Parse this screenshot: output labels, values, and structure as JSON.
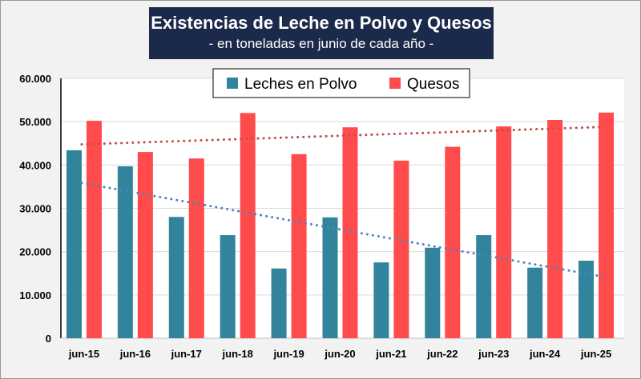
{
  "chart_data": {
    "type": "bar",
    "title": "Existencias de Leche en Polvo y Quesos",
    "subtitle": "- en toneladas en junio de cada año -",
    "categories": [
      "jun-15",
      "jun-16",
      "jun-17",
      "jun-18",
      "jun-19",
      "jun-20",
      "jun-21",
      "jun-22",
      "jun-23",
      "jun-24",
      "jun-25"
    ],
    "series": [
      {
        "name": "Leches en Polvo",
        "color": "#31849b",
        "trendline": "linear",
        "trend_color": "#4f81bd",
        "values": [
          43400,
          39700,
          28000,
          23800,
          16100,
          27900,
          17500,
          20900,
          23800,
          16300,
          17900
        ]
      },
      {
        "name": "Quesos",
        "color": "#ff4b4b",
        "trendline": "linear",
        "trend_color": "#c0504d",
        "values": [
          50200,
          43000,
          41500,
          52000,
          42500,
          48700,
          41000,
          44200,
          48900,
          50400,
          52100
        ]
      }
    ],
    "ylim": [
      0,
      60000
    ],
    "yticks": [
      "0",
      "10.000",
      "20.000",
      "30.000",
      "40.000",
      "50.000",
      "60.000"
    ],
    "grid": true,
    "legend": "top-center"
  }
}
